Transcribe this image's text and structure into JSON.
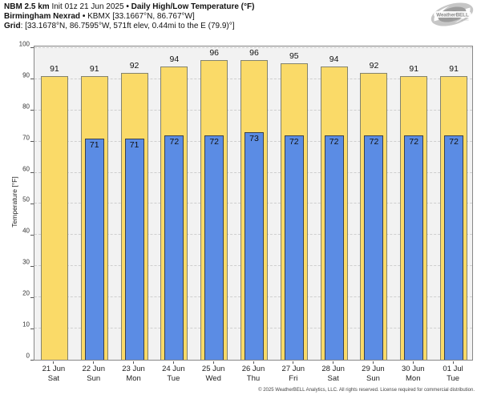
{
  "header": {
    "model": "NBM 2.5 km",
    "init": "Init 01z 21 Jun 2025",
    "sep": "•",
    "product": "Daily High/Low Temperature (°F)",
    "station": "Birmingham Nexrad",
    "station_info": "KBMX [33.1667°N, 86.767°W]",
    "grid_label": "Grid",
    "grid_info": ": [33.1678°N, 86.7595°W, 571ft elev, 0.44mi to the E (79.9)°]"
  },
  "logo": {
    "text": "WeatherBELL",
    "subtext": "Analytics LLC"
  },
  "chart_data": {
    "type": "bar",
    "title": "Daily High/Low Temperature (°F)",
    "ylabel": "Temperature [°F]",
    "ylim": [
      0,
      100
    ],
    "ytick_interval": 10,
    "grid": true,
    "legend_position": "none",
    "categories": [
      {
        "date": "21 Jun",
        "day": "Sat"
      },
      {
        "date": "22 Jun",
        "day": "Sun"
      },
      {
        "date": "23 Jun",
        "day": "Mon"
      },
      {
        "date": "24 Jun",
        "day": "Tue"
      },
      {
        "date": "25 Jun",
        "day": "Wed"
      },
      {
        "date": "26 Jun",
        "day": "Thu"
      },
      {
        "date": "27 Jun",
        "day": "Fri"
      },
      {
        "date": "28 Jun",
        "day": "Sat"
      },
      {
        "date": "29 Jun",
        "day": "Sun"
      },
      {
        "date": "30 Jun",
        "day": "Mon"
      },
      {
        "date": "01 Jul",
        "day": "Tue"
      }
    ],
    "series": [
      {
        "name": "Daily High",
        "color": "#fada68",
        "border_color": "#83836e",
        "values": [
          91,
          91,
          92,
          94,
          96,
          96,
          95,
          94,
          92,
          91,
          91
        ]
      },
      {
        "name": "Daily Low",
        "color": "#5b8ce4",
        "border_color": "#39414f",
        "values": [
          null,
          71,
          71,
          72,
          72,
          73,
          72,
          72,
          72,
          72,
          72
        ]
      }
    ]
  },
  "footer": {
    "copyright": "© 2025 WeatherBELL Analytics, LLC. All rights reserved. License required for commercial distribution."
  }
}
